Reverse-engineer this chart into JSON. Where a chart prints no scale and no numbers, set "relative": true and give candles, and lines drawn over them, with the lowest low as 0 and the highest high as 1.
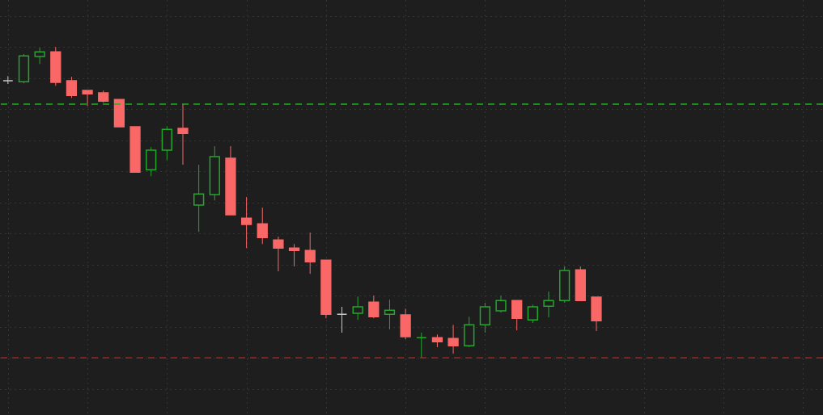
{
  "chart_data": {
    "type": "candlestick",
    "relative": true,
    "grid": true,
    "categories": [
      null,
      null,
      null,
      null,
      null,
      null,
      null,
      null,
      null,
      null,
      null,
      null,
      null,
      null,
      null,
      null,
      null,
      null,
      null,
      null,
      null,
      null,
      null,
      null,
      null,
      null,
      null,
      null,
      null,
      null,
      null,
      null,
      null,
      null,
      null,
      null,
      null,
      null
    ],
    "ohlc": [
      [
        0.891,
        0.906,
        0.881,
        0.891
      ],
      [
        0.888,
        0.977,
        0.883,
        0.971
      ],
      [
        0.969,
        0.997,
        0.945,
        0.984
      ],
      [
        0.984,
        1,
        0.875,
        0.886
      ],
      [
        0.891,
        0.904,
        0.836,
        0.844
      ],
      [
        0.86,
        0.86,
        0.81,
        0.849
      ],
      [
        0.852,
        0.86,
        0.821,
        0.826
      ],
      [
        0.831,
        0.831,
        0.743,
        0.743
      ],
      [
        0.743,
        0.743,
        0.597,
        0.597
      ],
      [
        0.605,
        0.678,
        0.584,
        0.668
      ],
      [
        0.668,
        0.745,
        0.636,
        0.735
      ],
      [
        0.738,
        0.816,
        0.621,
        0.722
      ],
      [
        0.491,
        0.621,
        0.405,
        0.527
      ],
      [
        0.525,
        0.681,
        0.506,
        0.647
      ],
      [
        0.642,
        0.681,
        0.46,
        0.46
      ],
      [
        0.449,
        0.517,
        0.353,
        0.429
      ],
      [
        0.431,
        0.483,
        0.366,
        0.387
      ],
      [
        0.379,
        0.39,
        0.278,
        0.353
      ],
      [
        0.353,
        0.366,
        0.294,
        0.345
      ],
      [
        0.345,
        0.403,
        0.27,
        0.309
      ],
      [
        0.314,
        0.314,
        0.127,
        0.14
      ],
      [
        0.14,
        0.164,
        0.081,
        0.14
      ],
      [
        0.143,
        0.197,
        0.122,
        0.164
      ],
      [
        0.179,
        0.2,
        0.127,
        0.132
      ],
      [
        0.14,
        0.187,
        0.091,
        0.153
      ],
      [
        0.138,
        0.158,
        0.06,
        0.068
      ],
      [
        0.065,
        0.081,
        0,
        0.065
      ],
      [
        0.065,
        0.075,
        0.034,
        0.052
      ],
      [
        0.062,
        0.106,
        0.013,
        0.039
      ],
      [
        0.039,
        0.132,
        0.034,
        0.106
      ],
      [
        0.106,
        0.177,
        0.081,
        0.164
      ],
      [
        0.151,
        0.2,
        0.145,
        0.184
      ],
      [
        0.184,
        0.184,
        0.088,
        0.127
      ],
      [
        0.122,
        0.171,
        0.112,
        0.164
      ],
      [
        0.166,
        0.213,
        0.13,
        0.184
      ],
      [
        0.184,
        0.294,
        0.177,
        0.281
      ],
      [
        0.283,
        0.294,
        0.184,
        0.184
      ],
      [
        0.195,
        0.195,
        0.086,
        0.119
      ]
    ],
    "colors": [
      "#c8c8c8",
      "#22a62c",
      "#22a62c",
      "#f96767",
      "#f96767",
      "#f96767",
      "#f96767",
      "#f96767",
      "#f96767",
      "#22a62c",
      "#22a62c",
      "#f96767",
      "#22a62c",
      "#22a62c",
      "#f96767",
      "#f96767",
      "#f96767",
      "#f96767",
      "#f96767",
      "#f96767",
      "#f96767",
      "#c8c8c8",
      "#22a62c",
      "#f96767",
      "#22a62c",
      "#f96767",
      "#22a62c",
      "#f96767",
      "#f96767",
      "#22a62c",
      "#22a62c",
      "#22a62c",
      "#f96767",
      "#22a62c",
      "#22a62c",
      "#22a62c",
      "#f96767",
      "#f96767"
    ],
    "ref_lines": [
      {
        "axis": "y",
        "value": 0.816,
        "color": "#1fb31f",
        "line_style": "dashed"
      },
      {
        "axis": "y",
        "value": 0,
        "color": "#c42323",
        "line_style": "dashed"
      }
    ]
  }
}
